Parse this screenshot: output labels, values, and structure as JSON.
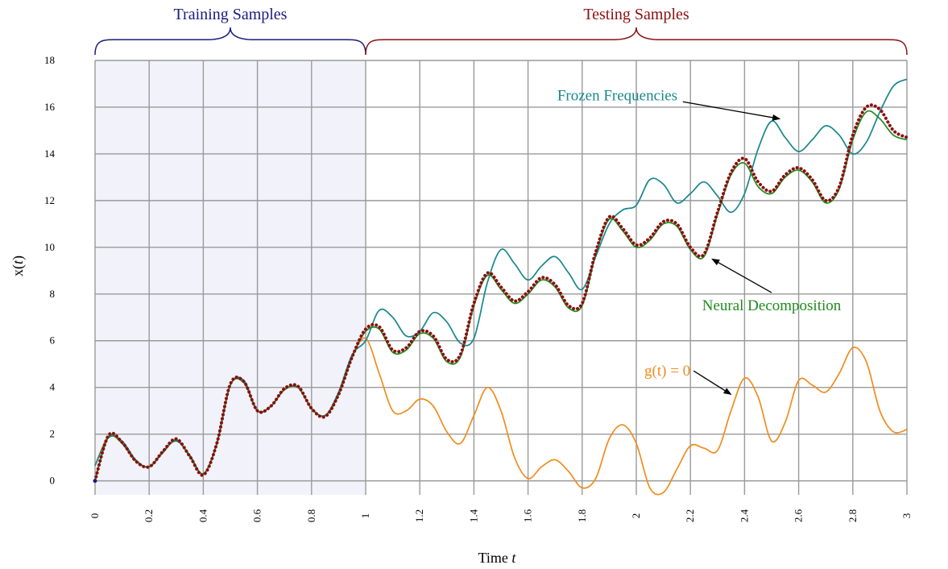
{
  "chart_data": {
    "type": "line",
    "xlabel_text": "Time",
    "xlabel_var": "t",
    "ylabel_text": "x(",
    "ylabel_var": "t",
    "ylabel_close": ")",
    "xlim": [
      0,
      3
    ],
    "ylim": [
      -0.6,
      18
    ],
    "x_ticks": [
      "0",
      "0.2",
      "0.4",
      "0.6",
      "0.8",
      "1",
      "1.2",
      "1.4",
      "1.6",
      "1.8",
      "2",
      "2.2",
      "2.4",
      "2.6",
      "2.8",
      "3"
    ],
    "y_ticks": [
      "0",
      "2",
      "4",
      "6",
      "8",
      "10",
      "12",
      "14",
      "16",
      "18"
    ],
    "grid": true,
    "regions": [
      {
        "label": "Training Samples",
        "x_start": 0,
        "x_end": 1,
        "color": "#1a1a80",
        "shaded": true
      },
      {
        "label": "Testing Samples",
        "x_start": 1,
        "x_end": 3,
        "color": "#8b1010",
        "shaded": false
      }
    ],
    "series": [
      {
        "name": "g(t) = 0",
        "color": "#f08c1e",
        "x": [
          0,
          0.05,
          0.1,
          0.15,
          0.2,
          0.25,
          0.3,
          0.35,
          0.4,
          0.45,
          0.5,
          0.55,
          0.6,
          0.65,
          0.7,
          0.75,
          0.8,
          0.85,
          0.9,
          0.95,
          1.0,
          1.05,
          1.1,
          1.15,
          1.2,
          1.25,
          1.3,
          1.35,
          1.4,
          1.45,
          1.5,
          1.55,
          1.6,
          1.65,
          1.7,
          1.75,
          1.8,
          1.85,
          1.9,
          1.95,
          2.0,
          2.05,
          2.1,
          2.15,
          2.2,
          2.25,
          2.3,
          2.35,
          2.4,
          2.45,
          2.5,
          2.55,
          2.6,
          2.65,
          2.7,
          2.75,
          2.8,
          2.85,
          2.9,
          2.95,
          3.0
        ],
        "y": [
          0.65,
          1.9,
          1.6,
          0.85,
          0.6,
          1.2,
          1.75,
          1.05,
          0.3,
          1.6,
          4.1,
          4.2,
          3.0,
          3.2,
          3.9,
          4.0,
          3.1,
          2.8,
          3.7,
          5.3,
          6.1,
          4.6,
          3.0,
          3.0,
          3.5,
          3.2,
          2.1,
          1.6,
          2.8,
          4.0,
          3.0,
          1.0,
          0.1,
          0.6,
          0.9,
          0.4,
          -0.3,
          0.1,
          1.8,
          2.4,
          1.6,
          -0.3,
          -0.5,
          0.5,
          1.5,
          1.4,
          1.3,
          3.0,
          4.4,
          3.6,
          1.7,
          2.5,
          4.3,
          4.1,
          3.8,
          4.6,
          5.7,
          5.1,
          3.0,
          2.1,
          2.2
        ]
      },
      {
        "name": "Frozen Frequencies",
        "color": "#17878c",
        "x": [
          0,
          0.05,
          0.1,
          0.15,
          0.2,
          0.25,
          0.3,
          0.35,
          0.4,
          0.45,
          0.5,
          0.55,
          0.6,
          0.65,
          0.7,
          0.75,
          0.8,
          0.85,
          0.9,
          0.95,
          1.0,
          1.05,
          1.1,
          1.15,
          1.2,
          1.25,
          1.3,
          1.35,
          1.4,
          1.45,
          1.5,
          1.55,
          1.6,
          1.65,
          1.7,
          1.75,
          1.8,
          1.85,
          1.9,
          1.95,
          2.0,
          2.05,
          2.1,
          2.15,
          2.2,
          2.25,
          2.3,
          2.35,
          2.4,
          2.45,
          2.5,
          2.55,
          2.6,
          2.65,
          2.7,
          2.75,
          2.8,
          2.85,
          2.9,
          2.95,
          3.0
        ],
        "y": [
          0.65,
          1.85,
          1.7,
          0.9,
          0.6,
          1.25,
          1.7,
          1.1,
          0.3,
          1.6,
          4.1,
          4.3,
          3.0,
          3.2,
          3.9,
          4.0,
          3.1,
          2.8,
          3.8,
          5.4,
          6.0,
          7.3,
          7.0,
          6.2,
          6.4,
          7.2,
          6.8,
          5.9,
          6.1,
          8.5,
          9.9,
          9.3,
          8.6,
          9.2,
          9.6,
          8.9,
          8.2,
          9.6,
          11.0,
          11.6,
          11.8,
          12.9,
          12.7,
          11.9,
          12.3,
          12.8,
          12.2,
          11.5,
          12.3,
          14.2,
          15.4,
          14.7,
          14.1,
          14.6,
          15.2,
          14.8,
          14.0,
          14.5,
          15.8,
          16.9,
          17.2
        ]
      },
      {
        "name": "Neural Decomposition",
        "color": "#1e8c1e",
        "x": [
          0,
          0.05,
          0.1,
          0.15,
          0.2,
          0.25,
          0.3,
          0.35,
          0.4,
          0.45,
          0.5,
          0.55,
          0.6,
          0.65,
          0.7,
          0.75,
          0.8,
          0.85,
          0.9,
          0.95,
          1.0,
          1.05,
          1.1,
          1.15,
          1.2,
          1.25,
          1.3,
          1.35,
          1.4,
          1.45,
          1.5,
          1.55,
          1.6,
          1.65,
          1.7,
          1.75,
          1.8,
          1.85,
          1.9,
          1.95,
          2.0,
          2.05,
          2.1,
          2.15,
          2.2,
          2.25,
          2.3,
          2.35,
          2.4,
          2.45,
          2.5,
          2.55,
          2.6,
          2.65,
          2.7,
          2.75,
          2.8,
          2.85,
          2.9,
          2.95,
          3.0
        ],
        "y": [
          0.05,
          1.9,
          1.6,
          0.85,
          0.6,
          1.2,
          1.75,
          1.05,
          0.3,
          1.6,
          4.1,
          4.2,
          3.0,
          3.2,
          3.9,
          4.0,
          3.1,
          2.8,
          3.7,
          5.3,
          6.4,
          6.5,
          5.5,
          5.6,
          6.3,
          6.1,
          5.1,
          5.3,
          7.5,
          8.8,
          8.2,
          7.6,
          8.0,
          8.6,
          8.3,
          7.4,
          7.5,
          9.7,
          11.2,
          10.7,
          10.0,
          10.3,
          11.0,
          10.9,
          9.9,
          9.6,
          11.4,
          13.1,
          13.6,
          12.6,
          12.3,
          13.0,
          13.3,
          12.8,
          11.9,
          12.5,
          14.6,
          15.8,
          15.5,
          14.8,
          14.6
        ]
      },
      {
        "name": "",
        "color": "#8b1010",
        "dotted": true,
        "x": [
          0,
          0.05,
          0.1,
          0.15,
          0.2,
          0.25,
          0.3,
          0.35,
          0.4,
          0.45,
          0.5,
          0.55,
          0.6,
          0.65,
          0.7,
          0.75,
          0.8,
          0.85,
          0.9,
          0.95,
          1.0,
          1.05,
          1.1,
          1.15,
          1.2,
          1.25,
          1.3,
          1.35,
          1.4,
          1.45,
          1.5,
          1.55,
          1.6,
          1.65,
          1.7,
          1.75,
          1.8,
          1.85,
          1.9,
          1.95,
          2.0,
          2.05,
          2.1,
          2.15,
          2.2,
          2.25,
          2.3,
          2.35,
          2.4,
          2.45,
          2.5,
          2.55,
          2.6,
          2.65,
          2.7,
          2.75,
          2.8,
          2.85,
          2.9,
          2.95,
          3.0
        ],
        "y": [
          0.0,
          1.95,
          1.65,
          0.85,
          0.6,
          1.25,
          1.8,
          1.05,
          0.25,
          1.6,
          4.15,
          4.25,
          3.0,
          3.2,
          3.95,
          4.05,
          3.1,
          2.75,
          3.7,
          5.3,
          6.5,
          6.6,
          5.6,
          5.7,
          6.4,
          6.2,
          5.2,
          5.4,
          7.6,
          8.9,
          8.3,
          7.7,
          8.1,
          8.7,
          8.4,
          7.5,
          7.6,
          9.8,
          11.3,
          10.8,
          10.1,
          10.4,
          11.1,
          11.0,
          10.0,
          9.7,
          11.5,
          13.2,
          13.8,
          12.8,
          12.4,
          13.1,
          13.4,
          12.9,
          12.0,
          12.6,
          14.8,
          16.0,
          15.9,
          15.0,
          14.7
        ]
      }
    ],
    "annotations": [
      {
        "text": "Frozen Frequencies",
        "color": "#17878c",
        "x": 1.93,
        "y": 16.3,
        "arrow_to": [
          2.53,
          15.5
        ],
        "anchor": "middle"
      },
      {
        "text": "Neural Decomposition",
        "color": "#1e8c1e",
        "x": 2.5,
        "y": 7.3,
        "arrow_to": [
          2.28,
          9.5
        ],
        "anchor": "middle"
      },
      {
        "text": "g(t) = 0",
        "color": "#f08c1e",
        "x": 2.2,
        "y": 4.5,
        "arrow_to": [
          2.35,
          3.7
        ],
        "anchor": "end"
      }
    ]
  }
}
